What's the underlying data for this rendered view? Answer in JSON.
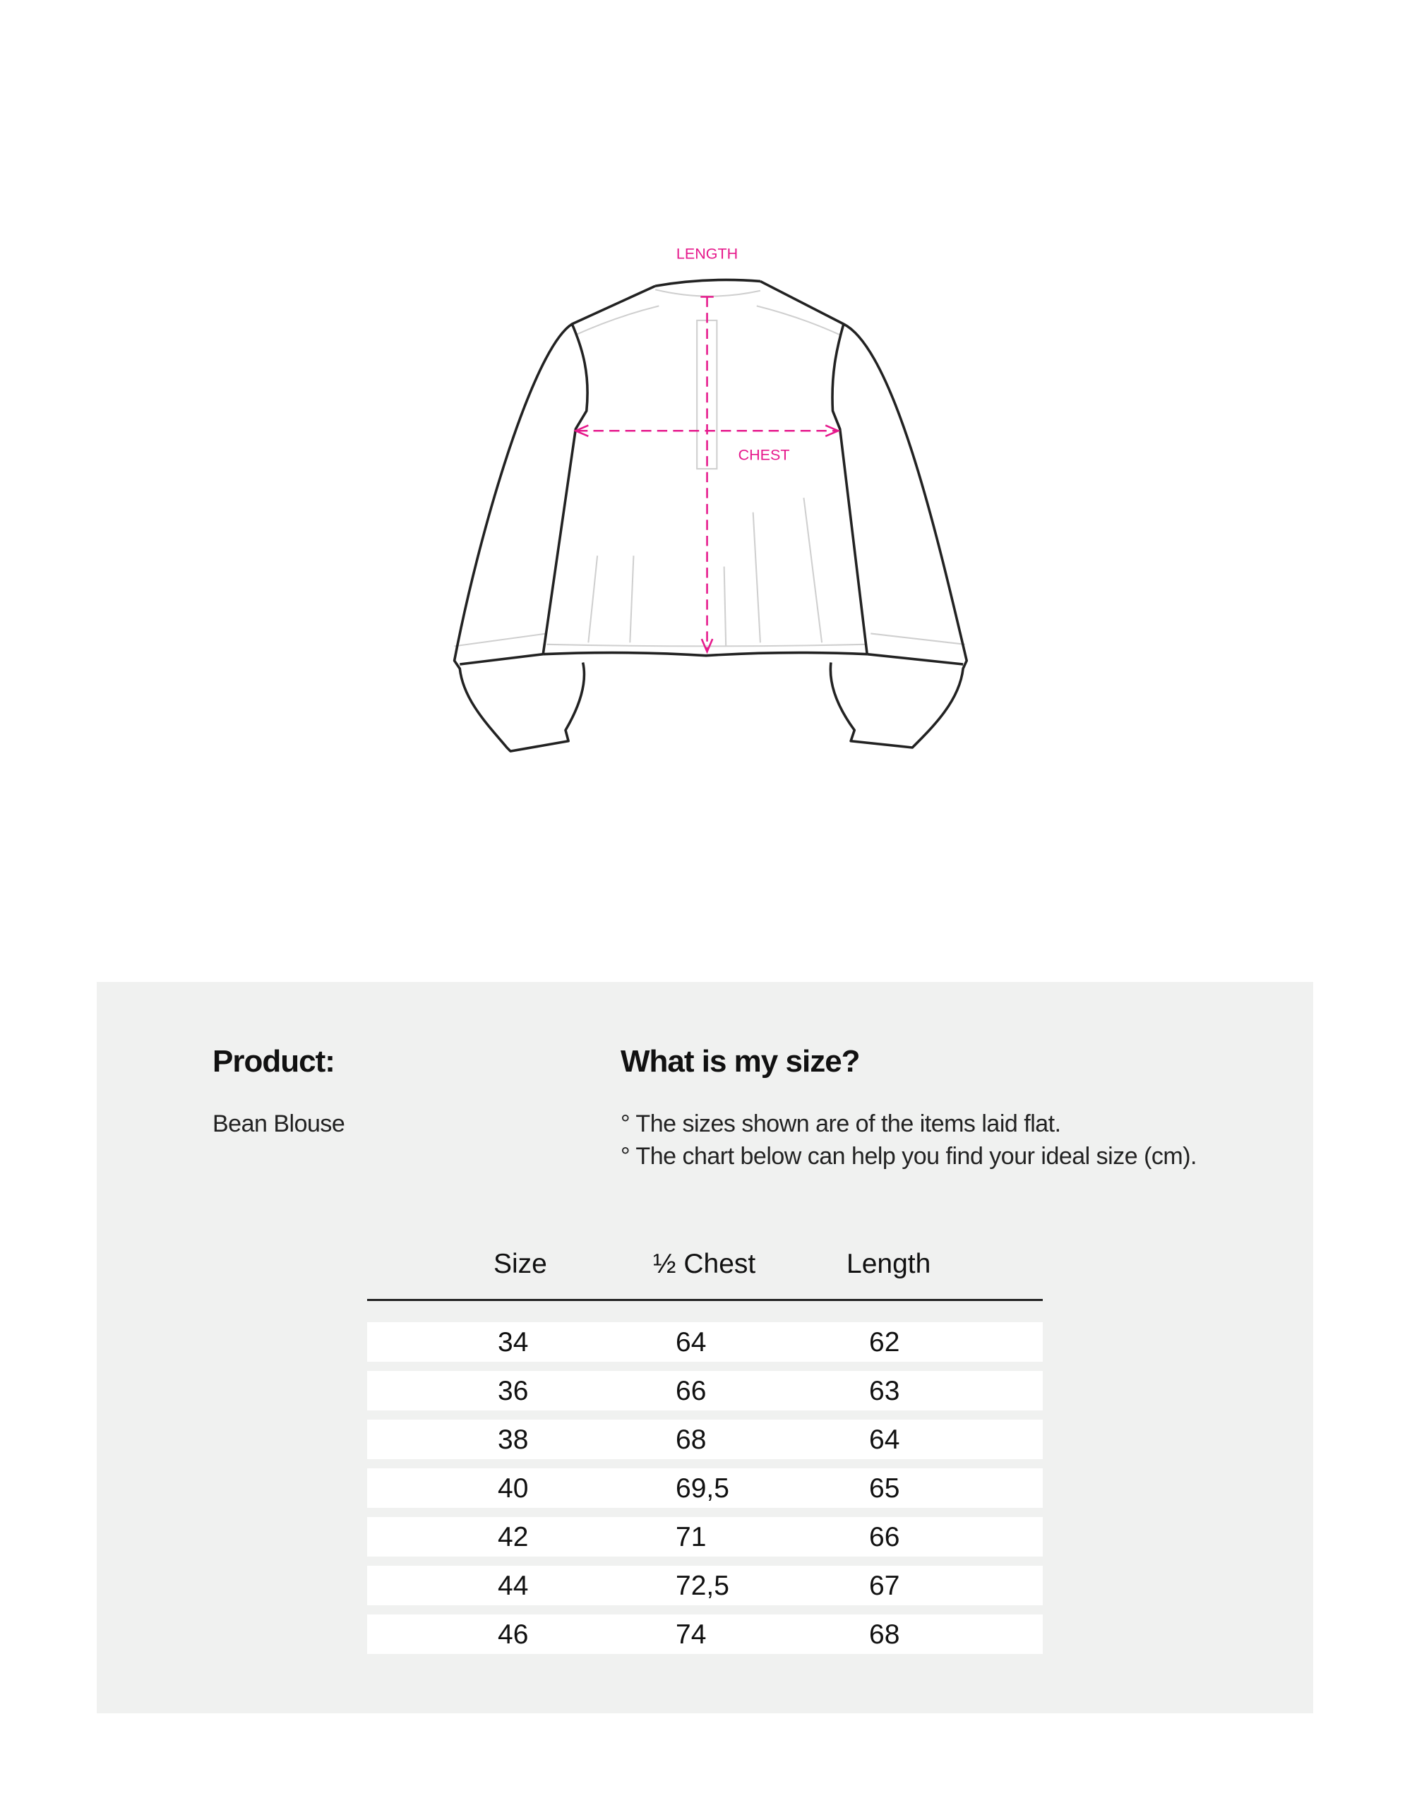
{
  "diagram": {
    "length_label": "LENGTH",
    "chest_label": "CHEST",
    "accent_color": "#e6198c"
  },
  "product": {
    "heading": "Product:",
    "name": "Bean Blouse"
  },
  "size_help": {
    "heading": "What is my size?",
    "notes": [
      "° The sizes shown are of the items laid flat.",
      "° The chart below can help you find your ideal size (cm)."
    ]
  },
  "table": {
    "headers": [
      "Size",
      "½ Chest",
      "Length"
    ],
    "rows": [
      [
        "34",
        "64",
        "62"
      ],
      [
        "36",
        "66",
        "63"
      ],
      [
        "38",
        "68",
        "64"
      ],
      [
        "40",
        "69,5",
        "65"
      ],
      [
        "42",
        "71",
        "66"
      ],
      [
        "44",
        "72,5",
        "67"
      ],
      [
        "46",
        "74",
        "68"
      ]
    ]
  }
}
